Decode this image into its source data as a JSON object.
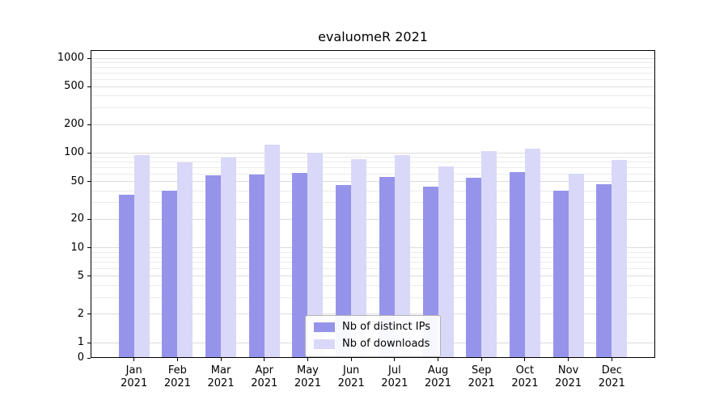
{
  "chart_data": {
    "type": "bar",
    "title": "evaluomeR 2021",
    "year": "2021",
    "categories": [
      "Jan",
      "Feb",
      "Mar",
      "Apr",
      "May",
      "Jun",
      "Jul",
      "Aug",
      "Sep",
      "Oct",
      "Nov",
      "Dec"
    ],
    "series": [
      {
        "name": "Nb of distinct IPs",
        "color": "#9694ea",
        "values": [
          36,
          40,
          58,
          59,
          62,
          46,
          56,
          44,
          55,
          63,
          40,
          47
        ]
      },
      {
        "name": "Nb of downloads",
        "color": "#d9d8f8",
        "values": [
          95,
          80,
          89,
          123,
          100,
          86,
          94,
          72,
          104,
          110,
          61,
          84
        ]
      }
    ],
    "y_axis": {
      "scale": "log-like",
      "tick_values": [
        0,
        1,
        2,
        5,
        10,
        20,
        50,
        100,
        200,
        500,
        1000
      ],
      "tick_labels": [
        "0",
        "1",
        "2",
        "5",
        "10",
        "20",
        "50",
        "100",
        "200",
        "500",
        "1000"
      ],
      "ylim": [
        0,
        1000
      ],
      "grid": "horizontal, major and minor"
    },
    "legend": {
      "position": "lower center",
      "entries": [
        "Nb of distinct IPs",
        "Nb of downloads"
      ]
    },
    "colors": {
      "background": "#ffffff",
      "grid_major": "#dcdcdc",
      "grid_minor": "#ebebeb",
      "axis": "#000000",
      "legend_border": "#b3b3b3"
    }
  }
}
